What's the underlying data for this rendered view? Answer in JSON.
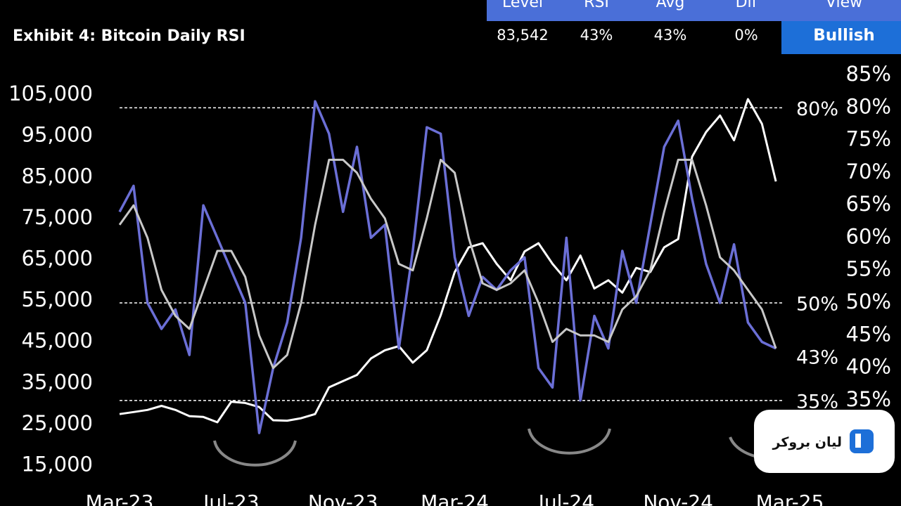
{
  "header": {
    "columns": [
      "Level",
      "RSI",
      "Avg",
      "Dif",
      "View"
    ],
    "values": [
      "83,542",
      "43%",
      "43%",
      "0%",
      "Bullish"
    ]
  },
  "chart_data": {
    "type": "line",
    "title": "Exhibit 4: Bitcoin Daily  RSI",
    "x": [
      0,
      0.5,
      1,
      1.5,
      2,
      2.5,
      3,
      3.5,
      4,
      4.5,
      5,
      5.5,
      6,
      6.5,
      7,
      7.5,
      8,
      8.5,
      9,
      9.5,
      10,
      10.5,
      11,
      11.5,
      12,
      12.5,
      13,
      13.5,
      14,
      14.5,
      15,
      15.5,
      16,
      16.5,
      17,
      17.5,
      18,
      18.5,
      19,
      19.5,
      20,
      20.5,
      21,
      21.5,
      22,
      22.5,
      23,
      23.5
    ],
    "xlim": [
      0,
      24
    ],
    "xticks": [
      {
        "value": 0,
        "label": "Mar-23"
      },
      {
        "value": 4,
        "label": "Jul-23"
      },
      {
        "value": 8,
        "label": "Nov-23"
      },
      {
        "value": 12,
        "label": "Mar-24"
      },
      {
        "value": 16,
        "label": "Jul-24"
      },
      {
        "value": 20,
        "label": "Nov-24"
      },
      {
        "value": 24,
        "label": "Mar-25"
      }
    ],
    "ylim": [
      12000,
      111000
    ],
    "yticks": [
      {
        "value": 15000,
        "label": "15,000"
      },
      {
        "value": 25000,
        "label": "25,000"
      },
      {
        "value": 35000,
        "label": "35,000"
      },
      {
        "value": 45000,
        "label": "45,000"
      },
      {
        "value": 55000,
        "label": "55,000"
      },
      {
        "value": 65000,
        "label": "65,000"
      },
      {
        "value": 75000,
        "label": "75,000"
      },
      {
        "value": 85000,
        "label": "85,000"
      },
      {
        "value": 95000,
        "label": "95,000"
      },
      {
        "value": 105000,
        "label": "105,000"
      }
    ],
    "y2lim": [
      23.1,
      85.76
    ],
    "y2ticks": [
      {
        "value": 35,
        "label": "35%"
      },
      {
        "value": 40,
        "label": "40%"
      },
      {
        "value": 45,
        "label": "45%"
      },
      {
        "value": 50,
        "label": "50%"
      },
      {
        "value": 55,
        "label": "55%"
      },
      {
        "value": 60,
        "label": "60%"
      },
      {
        "value": 65,
        "label": "65%"
      },
      {
        "value": 70,
        "label": "70%"
      },
      {
        "value": 75,
        "label": "75%"
      },
      {
        "value": 80,
        "label": "80%"
      },
      {
        "value": 85,
        "label": "85%"
      }
    ],
    "reference_lines": [
      {
        "value": 80,
        "label": "80%"
      },
      {
        "value": 50,
        "label": "50%"
      },
      {
        "value": 35,
        "label": "35%"
      }
    ],
    "annotations": [
      {
        "value": 43,
        "label": "43%"
      }
    ],
    "series": [
      {
        "color": "#ffffff",
        "axis": "y",
        "values": [
          27500,
          28000,
          28500,
          29500,
          28500,
          27000,
          26800,
          25500,
          30500,
          30200,
          29200,
          26000,
          25900,
          26500,
          27500,
          34000,
          35500,
          37000,
          41000,
          43000,
          44000,
          40000,
          43000,
          51500,
          62000,
          68000,
          69000,
          64000,
          60000,
          67000,
          69000,
          64000,
          60000,
          66000,
          58000,
          60000,
          57000,
          63000,
          62000,
          68000,
          70000,
          90000,
          96000,
          100000,
          94000,
          104000,
          98000,
          84000
        ]
      },
      {
        "color": "#6b6fd6",
        "axis": "y2",
        "values": [
          64,
          68,
          50,
          46,
          49,
          42,
          65,
          60,
          55,
          50,
          30,
          40,
          47,
          60,
          81,
          76,
          64,
          74,
          60,
          62,
          43,
          58,
          77,
          76,
          57,
          48,
          54,
          52,
          55,
          57,
          40,
          37,
          60,
          35,
          48,
          43,
          58,
          50,
          62,
          74,
          78,
          66,
          56,
          50,
          59,
          47,
          44,
          43
        ]
      },
      {
        "color": "#c8c8c8",
        "axis": "y2",
        "values": [
          62,
          65,
          60,
          52,
          48,
          46,
          52,
          58,
          58,
          54,
          45,
          40,
          42,
          50,
          62,
          72,
          72,
          70,
          66,
          63,
          56,
          55,
          63,
          72,
          70,
          60,
          53,
          52,
          53,
          55,
          50,
          44,
          46,
          45,
          45,
          44,
          49,
          51,
          55,
          64,
          72,
          72,
          65,
          57,
          55,
          52,
          49,
          43
        ]
      }
    ]
  },
  "watermark": {
    "text": "لیان بروکر"
  }
}
